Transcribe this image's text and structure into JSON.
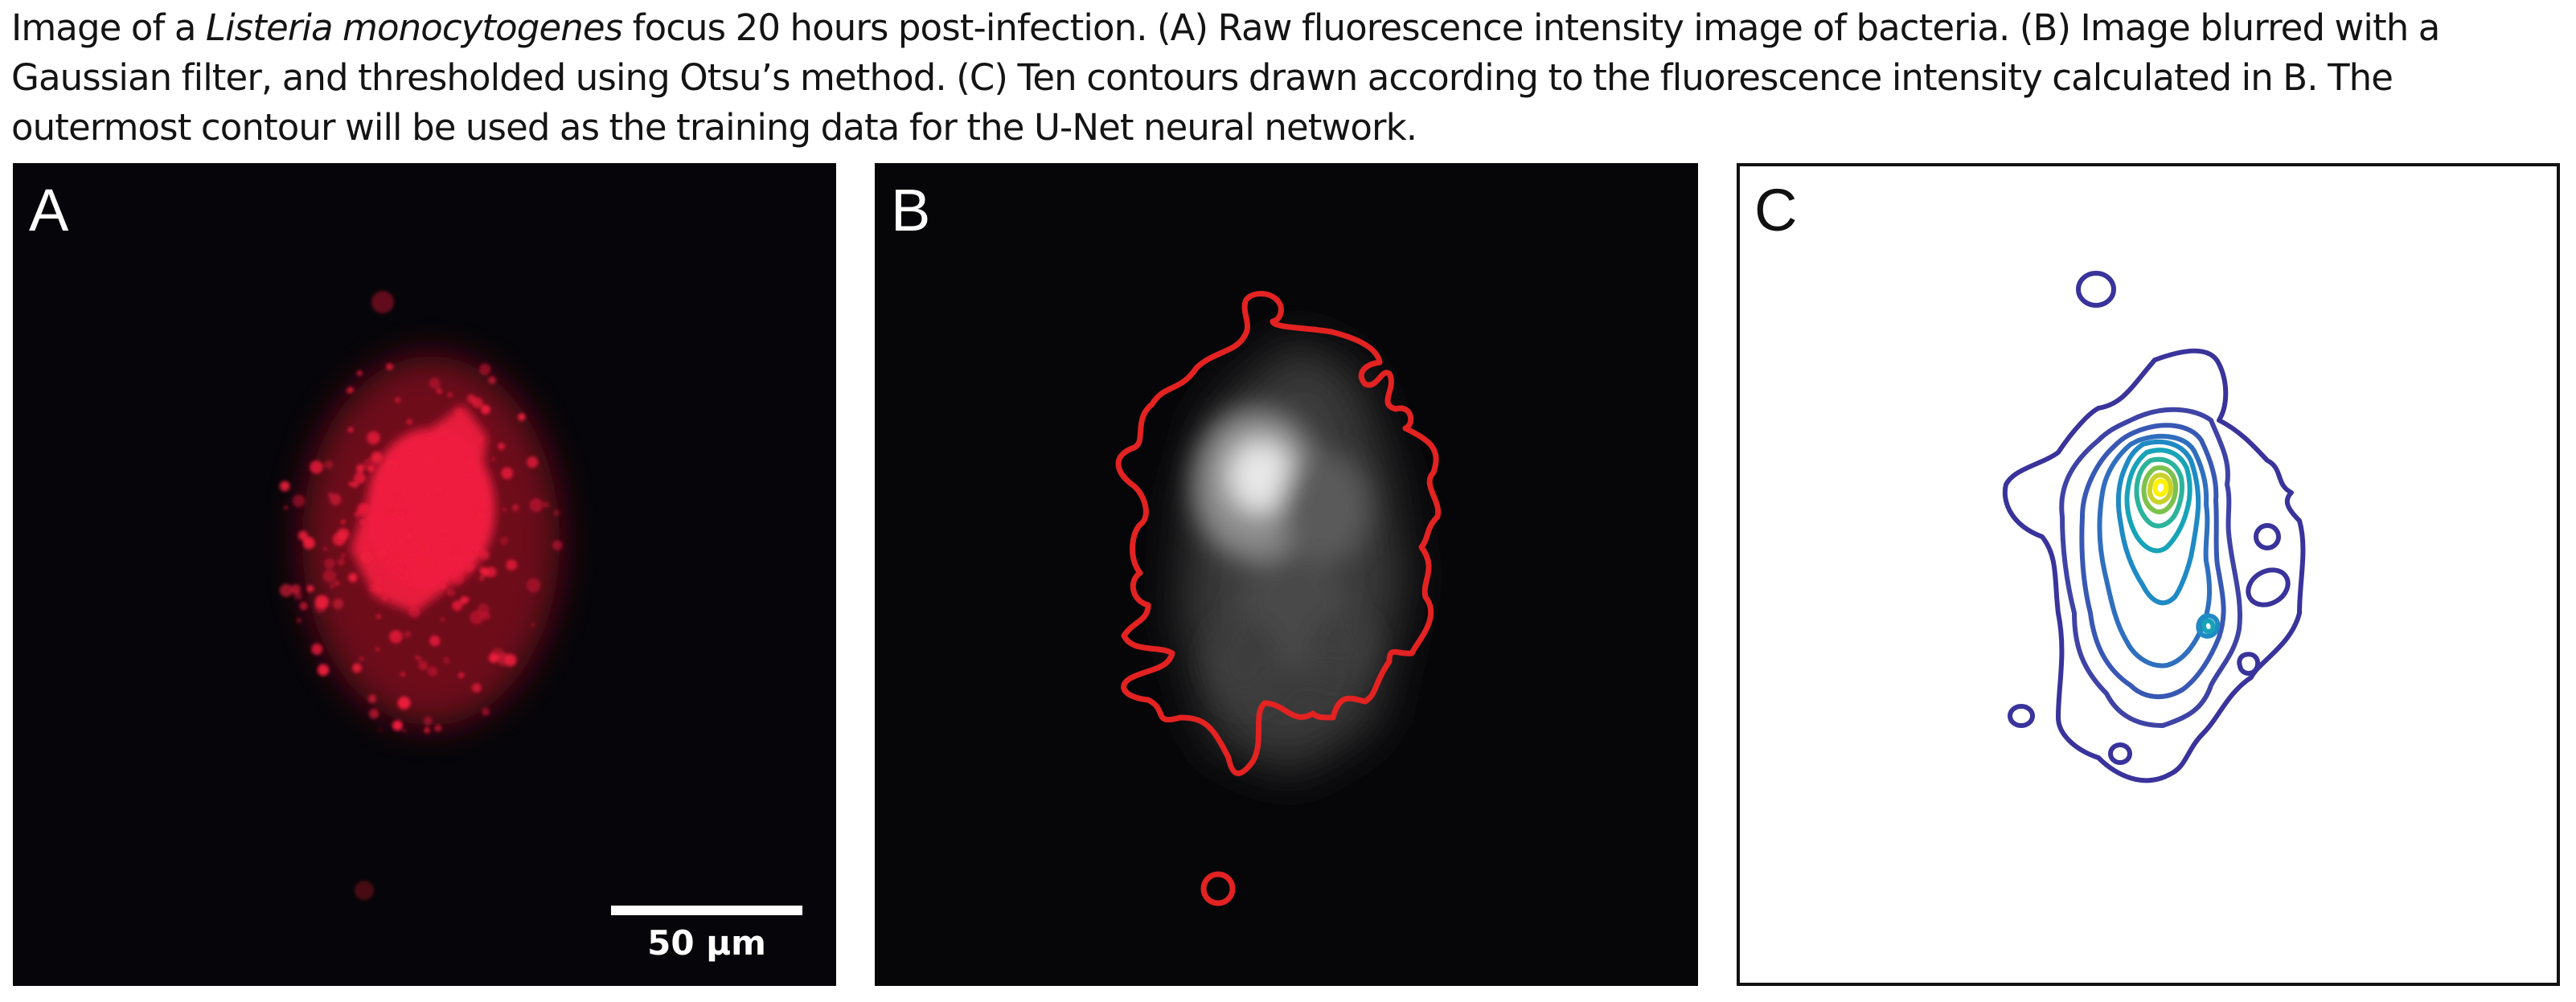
{
  "caption": {
    "part1": "Image of a ",
    "species": "Listeria monocytogenes",
    "part2": " focus 20 hours post-infection. (A) Raw fluorescence intensity image of bacteria. (B) Image blurred with a Gaussian filter, and thresholded using Otsu’s method. (C) Ten contours drawn according to the fluorescence intensity calculated in B. The outermost contour will be used as the training data for the U-Net neural network."
  },
  "panels": [
    {
      "label": "A",
      "scale_bar": "50 μm"
    },
    {
      "label": "B"
    },
    {
      "label": "C"
    }
  ],
  "colors": {
    "fluorescence": "#ee1c3c",
    "threshold_contour": "#e32222",
    "contour_outer": "#39339b",
    "contour_inner": "#fff200"
  }
}
